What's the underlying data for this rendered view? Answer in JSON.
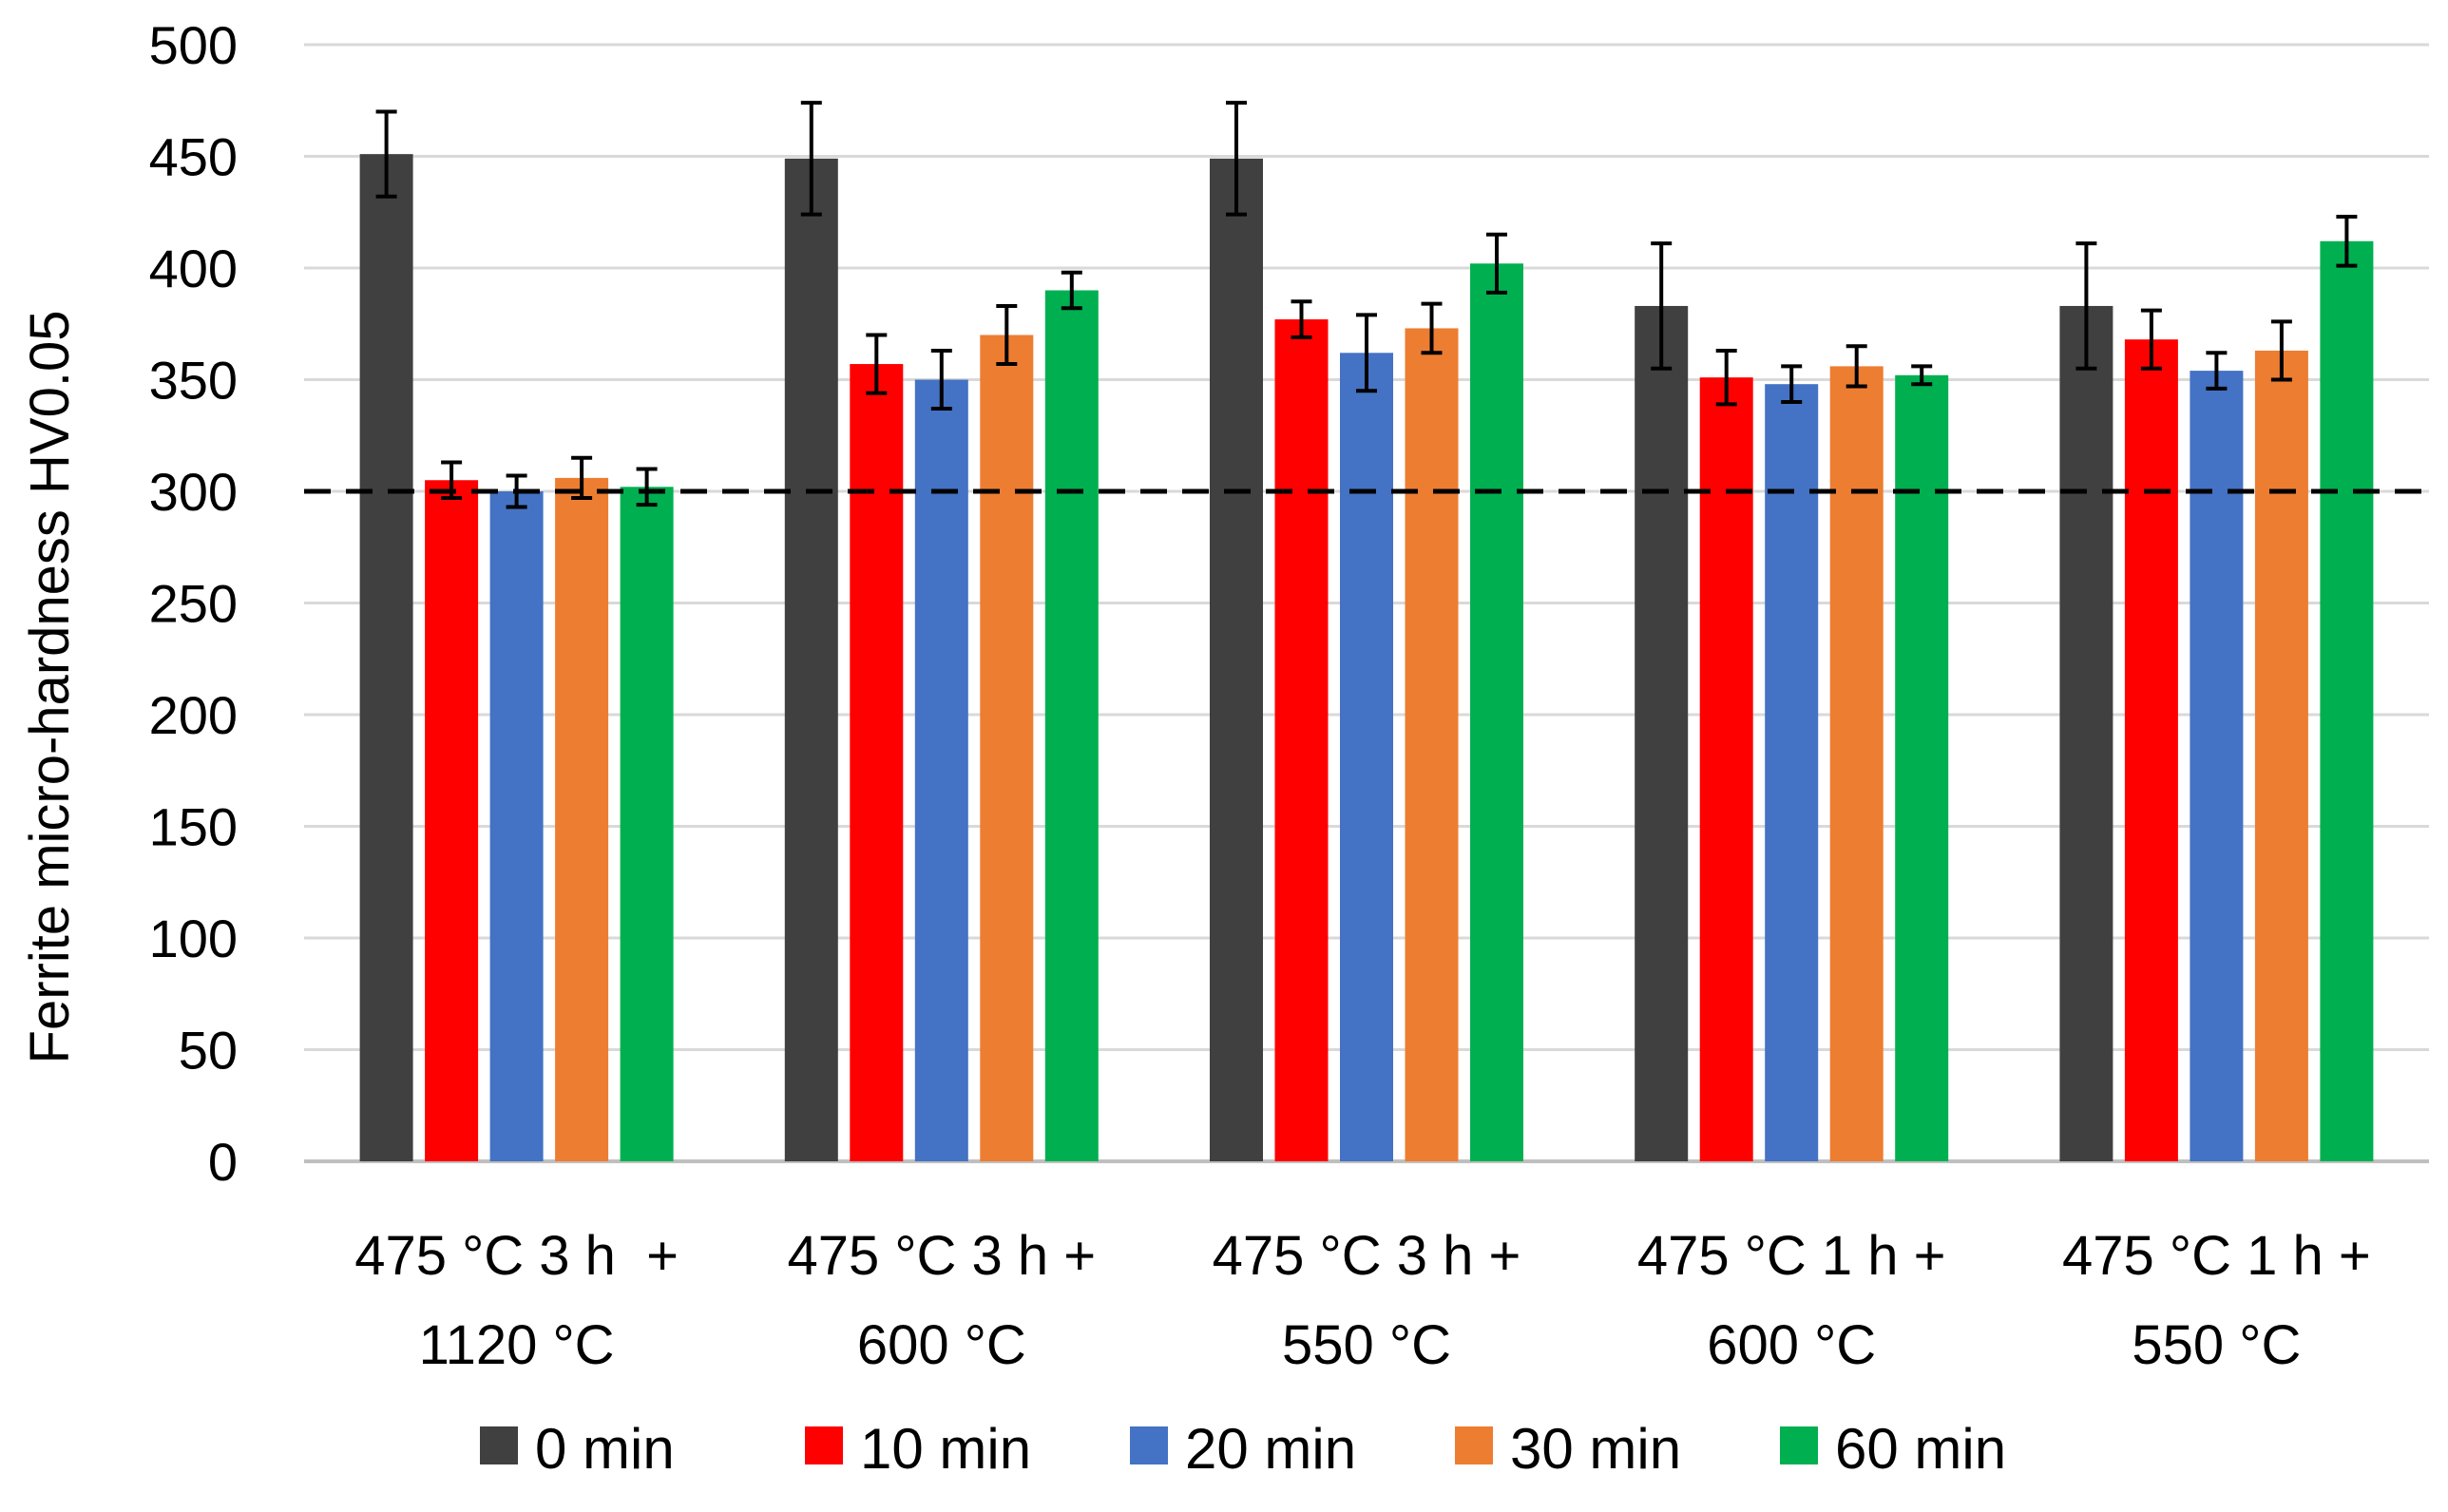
{
  "chart_data": {
    "type": "bar",
    "title": "",
    "xlabel": "",
    "ylabel": "Ferrite micro-hardness HV0.05",
    "ylim": [
      0,
      500
    ],
    "yticks": [
      0,
      50,
      100,
      150,
      200,
      250,
      300,
      350,
      400,
      450,
      500
    ],
    "grid": true,
    "legend_position": "bottom",
    "reference_line": {
      "value": 300,
      "style": "dashed",
      "color": "#000000"
    },
    "categories": [
      [
        "475 °C 3 h  +",
        "1120 °C"
      ],
      [
        "475 °C 3 h +",
        "600 °C"
      ],
      [
        "475 °C 3 h +",
        "550 °C"
      ],
      [
        "475 °C 1 h +",
        "600 °C"
      ],
      [
        "475 °C 1 h +",
        "550 °C"
      ]
    ],
    "series": [
      {
        "name": "0 min",
        "color": "#404040",
        "values": [
          451,
          449,
          449,
          383,
          383
        ],
        "errors": [
          19,
          25,
          25,
          28,
          28
        ]
      },
      {
        "name": "10 min",
        "color": "#ff0000",
        "values": [
          305,
          357,
          377,
          351,
          368
        ],
        "errors": [
          8,
          13,
          8,
          12,
          13
        ]
      },
      {
        "name": "20 min",
        "color": "#4472c4",
        "values": [
          300,
          350,
          362,
          348,
          354
        ],
        "errors": [
          7,
          13,
          17,
          8,
          8
        ]
      },
      {
        "name": "30 min",
        "color": "#ed7d31",
        "values": [
          306,
          370,
          373,
          356,
          363
        ],
        "errors": [
          9,
          13,
          11,
          9,
          13
        ]
      },
      {
        "name": "60 min",
        "color": "#00b050",
        "values": [
          302,
          390,
          402,
          352,
          412
        ],
        "errors": [
          8,
          8,
          13,
          4,
          11
        ]
      }
    ]
  }
}
